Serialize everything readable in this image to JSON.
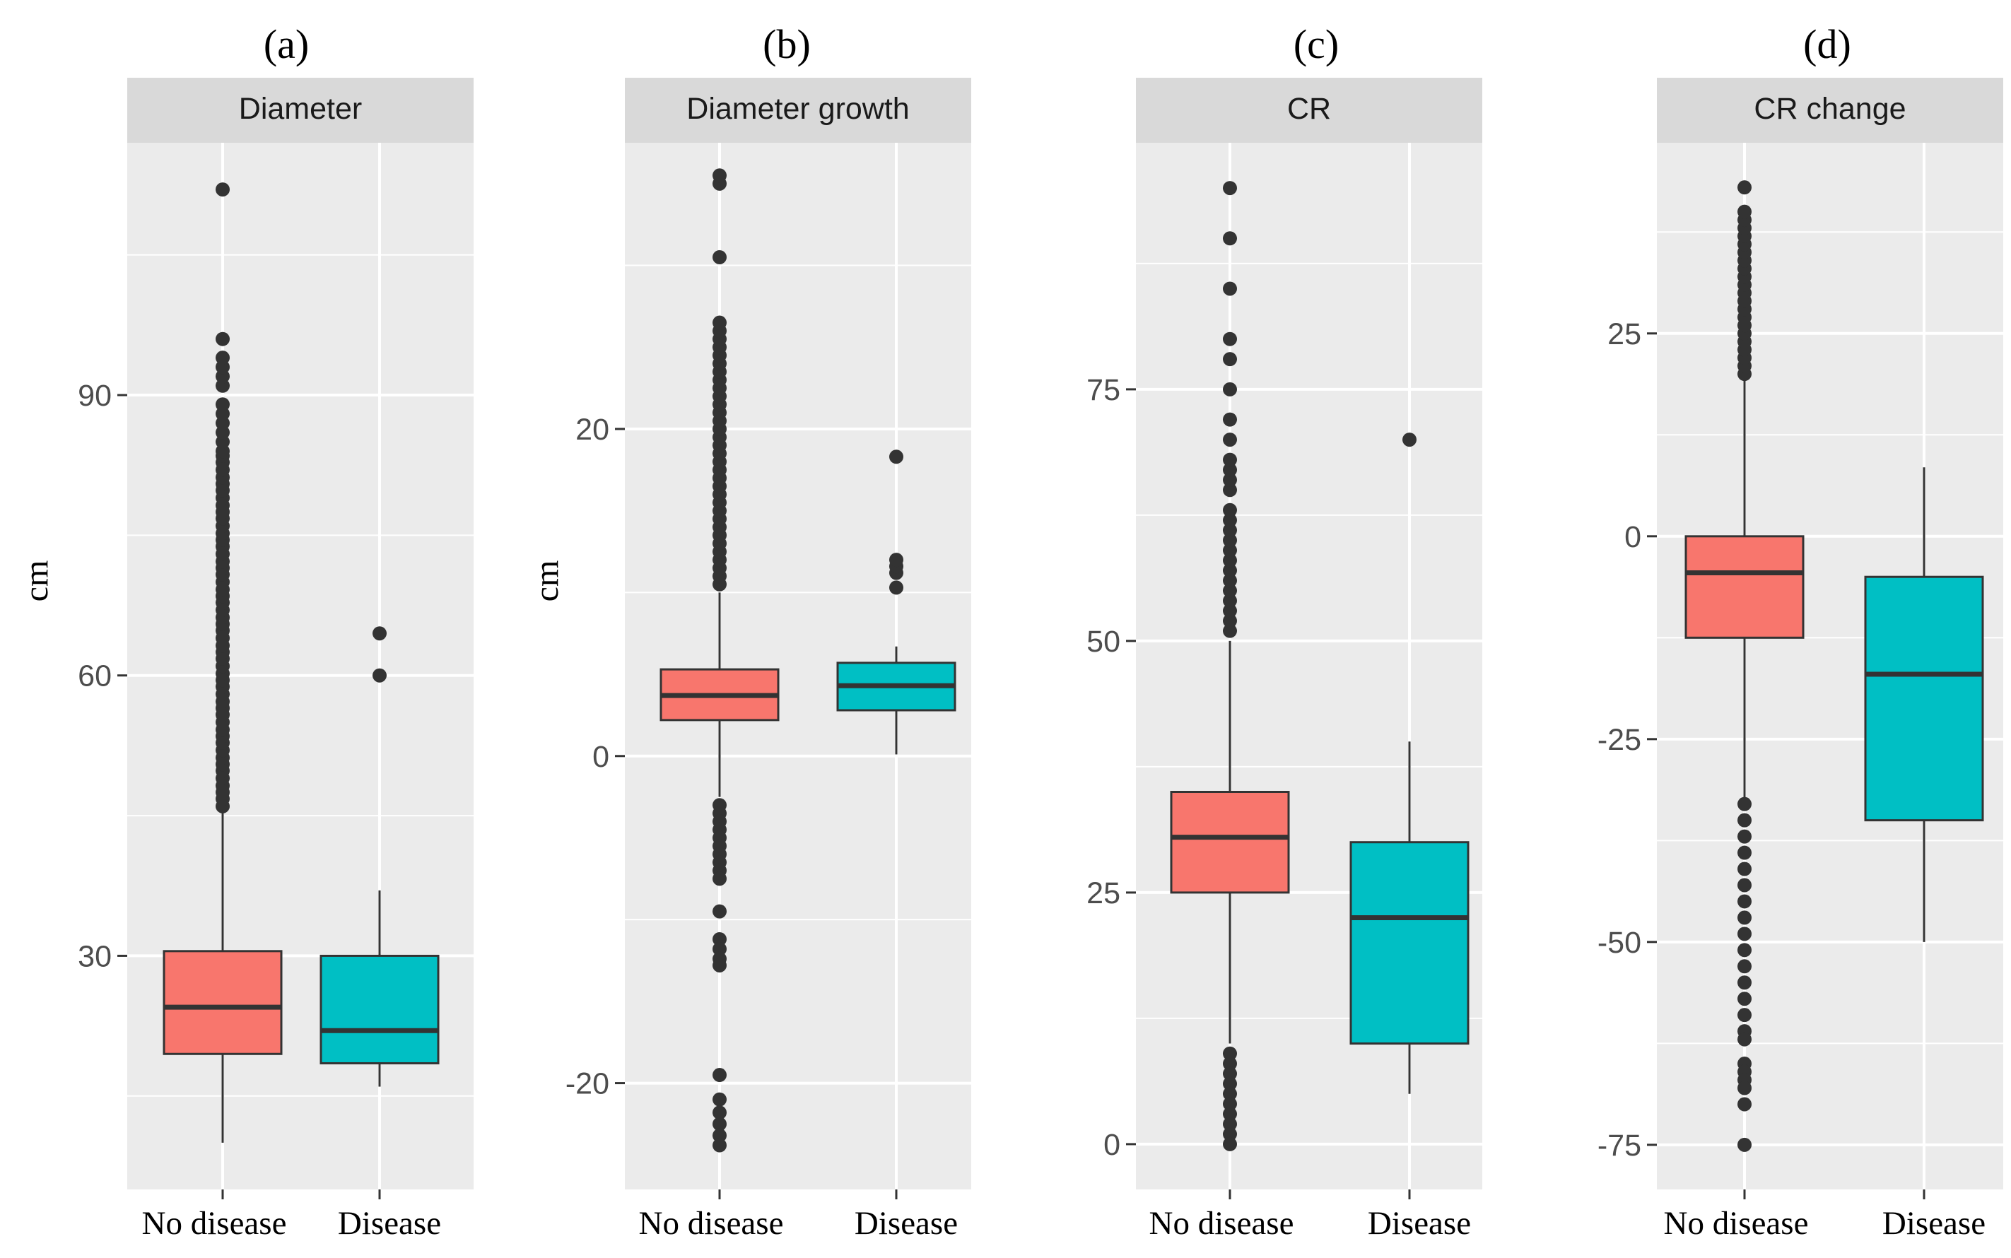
{
  "figure": {
    "ylabel_left": "cm",
    "ylabel_second": "cm"
  },
  "colors": {
    "no_disease": "#F8766D",
    "disease": "#00BFC4",
    "panel_bg": "#EBEBEB",
    "strip_bg": "#D9D9D9",
    "grid": "#FFFFFF",
    "ink": "#333333",
    "tick_text": "#4D4D4D"
  },
  "chart_data": [
    {
      "type": "box",
      "panel_letter": "(a)",
      "title": "Diameter",
      "ylabel": "cm",
      "categories": [
        "No disease",
        "Disease"
      ],
      "yticks": [
        30,
        60,
        90
      ],
      "ylim": [
        5,
        117
      ],
      "boxes": [
        {
          "q1": 19.5,
          "median": 24.5,
          "q3": 30.5,
          "whisker_low": 10,
          "whisker_high": 45.5,
          "outliers": [
            46,
            46.8,
            47.5,
            48.2,
            49,
            49.8,
            50.5,
            51.2,
            52,
            52.8,
            53.5,
            54.2,
            55,
            55.8,
            56.5,
            57.2,
            58,
            58.8,
            59.5,
            60.2,
            61,
            61.8,
            62.5,
            63.2,
            64,
            64.8,
            65.5,
            66.2,
            67,
            67.8,
            68.5,
            69.2,
            70,
            70.8,
            71.5,
            72.2,
            73,
            73.8,
            74.5,
            75.2,
            76,
            76.8,
            77.5,
            78.2,
            79,
            79.8,
            80.5,
            81.2,
            82,
            82.8,
            83.5,
            84,
            85,
            86,
            87,
            88,
            89,
            91,
            92,
            93,
            94,
            96,
            112
          ]
        },
        {
          "q1": 18.5,
          "median": 22,
          "q3": 30,
          "whisker_low": 16,
          "whisker_high": 37,
          "outliers": [
            60,
            64.5
          ]
        }
      ]
    },
    {
      "type": "box",
      "panel_letter": "(b)",
      "title": "Diameter growth",
      "ylabel": "cm",
      "categories": [
        "No disease",
        "Disease"
      ],
      "yticks": [
        -20,
        0,
        20
      ],
      "ylim": [
        -26.5,
        37.5
      ],
      "boxes": [
        {
          "q1": 2.2,
          "median": 3.7,
          "q3": 5.3,
          "whisker_low": -2.5,
          "whisker_high": 10,
          "outliers": [
            10.5,
            11,
            11.5,
            12,
            12.5,
            13,
            13.5,
            14,
            14.5,
            15,
            15.5,
            16,
            16.5,
            17,
            17.5,
            18,
            18.5,
            19,
            19.5,
            20,
            20.5,
            21,
            21.5,
            22,
            22.5,
            23,
            23.5,
            24,
            24.5,
            25,
            25.5,
            26,
            26.5,
            30.5,
            35,
            35.5,
            -3,
            -3.5,
            -4,
            -4.5,
            -5,
            -5.5,
            -6,
            -6.5,
            -7,
            -7.5,
            -9.5,
            -11.2,
            -11.8,
            -12.4,
            -12.8,
            -19.5,
            -21,
            -21.8,
            -22.5,
            -23.2,
            -23.8
          ]
        },
        {
          "q1": 2.8,
          "median": 4.3,
          "q3": 5.7,
          "whisker_low": 0.1,
          "whisker_high": 6.7,
          "outliers": [
            10.3,
            11.2,
            11.6,
            12,
            18.3
          ]
        }
      ]
    },
    {
      "type": "box",
      "panel_letter": "(c)",
      "title": "CR",
      "ylabel": "",
      "categories": [
        "No disease",
        "Disease"
      ],
      "yticks": [
        0,
        25,
        50,
        75
      ],
      "ylim": [
        -4.5,
        99.5
      ],
      "boxes": [
        {
          "q1": 25,
          "median": 30.5,
          "q3": 35,
          "whisker_low": 10,
          "whisker_high": 50,
          "outliers": [
            51,
            52,
            53,
            54,
            55,
            56,
            57,
            58,
            59,
            60,
            61,
            62,
            63,
            65,
            66,
            67,
            68,
            70,
            72,
            75,
            78,
            80,
            85,
            90,
            95,
            9,
            8,
            7,
            6,
            5,
            4,
            3,
            2,
            1,
            0
          ]
        },
        {
          "q1": 10,
          "median": 22.5,
          "q3": 30,
          "whisker_low": 5,
          "whisker_high": 40,
          "outliers": [
            70
          ]
        }
      ]
    },
    {
      "type": "box",
      "panel_letter": "(d)",
      "title": "CR change",
      "ylabel": "",
      "categories": [
        "No disease",
        "Disease"
      ],
      "yticks": [
        -75,
        -50,
        -25,
        0,
        25
      ],
      "ylim": [
        -80.5,
        48.5
      ],
      "boxes": [
        {
          "q1": -12.5,
          "median": -4.5,
          "q3": 0,
          "whisker_low": -32.5,
          "whisker_high": 19.5,
          "outliers": [
            20,
            21,
            22,
            23,
            24,
            25,
            26,
            27,
            28,
            29,
            30,
            31,
            32,
            33,
            34,
            35,
            36,
            37,
            38,
            39,
            40,
            43,
            -33,
            -35,
            -37,
            -39,
            -41,
            -43,
            -45,
            -47,
            -49,
            -51,
            -53,
            -55,
            -57,
            -59,
            -61,
            -62,
            -65,
            -66,
            -67,
            -68,
            -70,
            -75
          ]
        },
        {
          "q1": -35,
          "median": -17,
          "q3": -5,
          "whisker_low": -50,
          "whisker_high": 8.5,
          "outliers": []
        }
      ]
    }
  ]
}
